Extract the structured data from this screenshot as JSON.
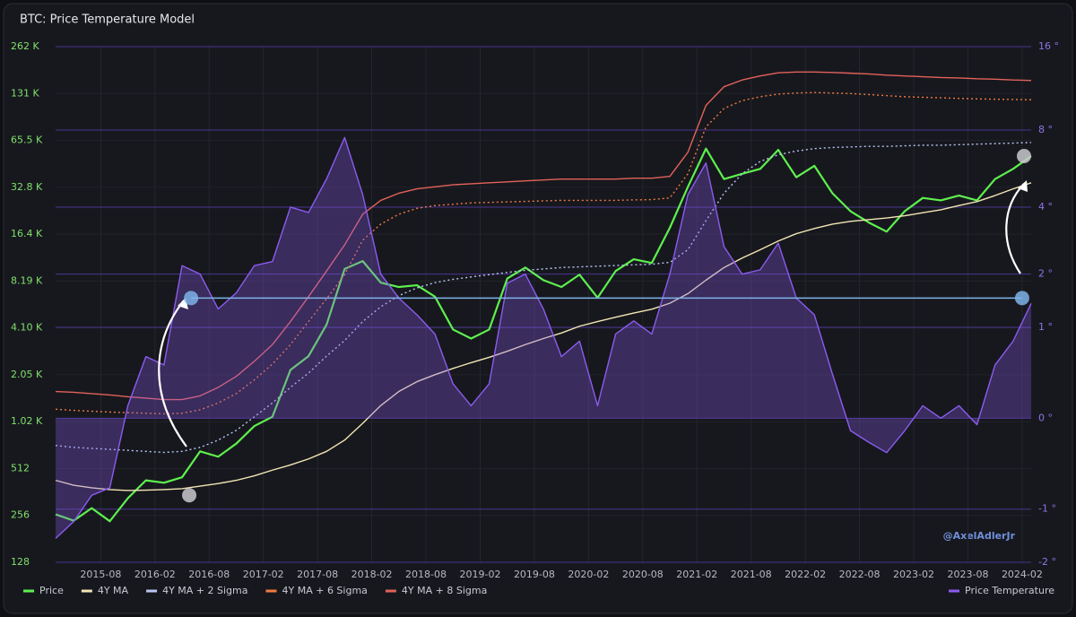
{
  "chart_data": {
    "type": "line",
    "title": "BTC: Price Temperature Model",
    "watermark": "@AxelAdlerJr",
    "x": [
      "2015-03",
      "2015-05",
      "2015-07",
      "2015-09",
      "2015-11",
      "2016-01",
      "2016-03",
      "2016-05",
      "2016-07",
      "2016-09",
      "2016-11",
      "2017-01",
      "2017-03",
      "2017-05",
      "2017-07",
      "2017-09",
      "2017-11",
      "2018-01",
      "2018-03",
      "2018-05",
      "2018-07",
      "2018-09",
      "2018-11",
      "2019-01",
      "2019-03",
      "2019-05",
      "2019-07",
      "2019-09",
      "2019-11",
      "2020-01",
      "2020-03",
      "2020-05",
      "2020-07",
      "2020-09",
      "2020-11",
      "2021-01",
      "2021-03",
      "2021-05",
      "2021-07",
      "2021-09",
      "2021-11",
      "2022-01",
      "2022-03",
      "2022-05",
      "2022-07",
      "2022-09",
      "2022-11",
      "2023-01",
      "2023-03",
      "2023-05",
      "2023-07",
      "2023-09",
      "2023-11",
      "2024-01",
      "2024-03"
    ],
    "series": [
      {
        "name": "Price",
        "color": "#5ef04e",
        "width": 2.2,
        "values": [
          260,
          237,
          285,
          235,
          330,
          430,
          415,
          450,
          660,
          610,
          740,
          960,
          1100,
          2200,
          2700,
          4300,
          9800,
          11000,
          8000,
          7500,
          7700,
          6500,
          4000,
          3500,
          4000,
          8500,
          10000,
          8300,
          7500,
          9000,
          6400,
          9500,
          11300,
          10700,
          18000,
          33000,
          58000,
          37000,
          40000,
          43000,
          57000,
          38000,
          45000,
          30000,
          23000,
          19500,
          17000,
          23000,
          28000,
          27000,
          29000,
          27000,
          37000,
          43000,
          52000
        ]
      },
      {
        "name": "4Y MA",
        "color": "#f3e6b4",
        "width": 1.4,
        "values": [
          430,
          400,
          385,
          375,
          370,
          372,
          375,
          380,
          395,
          410,
          430,
          460,
          500,
          540,
          590,
          660,
          780,
          1000,
          1300,
          1600,
          1850,
          2050,
          2250,
          2450,
          2650,
          2900,
          3200,
          3500,
          3800,
          4200,
          4500,
          4800,
          5100,
          5400,
          5900,
          6800,
          8300,
          10000,
          11500,
          13000,
          14800,
          16500,
          17800,
          19000,
          19800,
          20300,
          20800,
          21500,
          22500,
          23500,
          25000,
          26500,
          29000,
          32000,
          35000
        ]
      },
      {
        "name": "4Y MA + 2 Sigma",
        "color": "#b9c6f2",
        "width": 1.4,
        "dash": true,
        "values": [
          720,
          700,
          690,
          680,
          670,
          660,
          650,
          660,
          700,
          780,
          900,
          1100,
          1350,
          1700,
          2100,
          2700,
          3400,
          4500,
          5600,
          6600,
          7400,
          8000,
          8400,
          8700,
          9000,
          9300,
          9600,
          9800,
          10000,
          10100,
          10200,
          10300,
          10400,
          10500,
          10800,
          13000,
          20000,
          30000,
          40000,
          48000,
          53000,
          56000,
          58000,
          59000,
          59500,
          60000,
          60000,
          60500,
          61000,
          61000,
          61500,
          62000,
          62500,
          63000,
          63500
        ]
      },
      {
        "name": "4Y MA + 6 Sigma",
        "color": "#f07a3e",
        "width": 1.4,
        "dash": true,
        "values": [
          1230,
          1210,
          1195,
          1180,
          1170,
          1160,
          1150,
          1160,
          1220,
          1350,
          1550,
          1900,
          2400,
          3200,
          4500,
          6300,
          9000,
          15000,
          19000,
          22000,
          24000,
          25000,
          25500,
          26000,
          26200,
          26400,
          26600,
          26800,
          27000,
          27000,
          27000,
          27000,
          27200,
          27300,
          28000,
          40000,
          80000,
          105000,
          118000,
          125000,
          130000,
          132000,
          133000,
          132000,
          131000,
          129000,
          127000,
          125000,
          124000,
          123000,
          122000,
          121000,
          120500,
          120000,
          119500
        ]
      },
      {
        "name": "4Y MA + 8 Sigma",
        "color": "#e2625a",
        "width": 1.4,
        "values": [
          1600,
          1580,
          1550,
          1520,
          1480,
          1450,
          1420,
          1420,
          1500,
          1700,
          2000,
          2500,
          3200,
          4500,
          6500,
          9500,
          14000,
          22000,
          27000,
          30000,
          32000,
          33000,
          34000,
          34500,
          35000,
          35500,
          36000,
          36500,
          37000,
          37000,
          37000,
          37000,
          37500,
          37500,
          38500,
          55000,
          110000,
          145000,
          160000,
          170000,
          178000,
          180000,
          180000,
          179000,
          177000,
          175000,
          172000,
          170000,
          168000,
          166000,
          165000,
          163000,
          162000,
          160000,
          159000
        ]
      },
      {
        "name": "Price Temperature",
        "color": "#8b5cf0",
        "axis": "y2",
        "fill": true,
        "width": 1.4,
        "values": [
          -1.5,
          -1.2,
          -0.8,
          -0.7,
          0.1,
          0.6,
          0.5,
          2.2,
          2.0,
          1.3,
          1.6,
          2.2,
          2.3,
          4.0,
          3.8,
          5.2,
          7.5,
          4.5,
          2.0,
          1.5,
          1.2,
          0.9,
          0.3,
          0.1,
          0.3,
          1.8,
          2.0,
          1.3,
          0.6,
          0.8,
          0.1,
          0.9,
          1.1,
          0.9,
          2.0,
          4.5,
          6.0,
          2.7,
          2.0,
          2.1,
          2.8,
          1.5,
          1.2,
          0.4,
          -0.1,
          -0.2,
          -0.3,
          -0.1,
          0.1,
          0.0,
          0.1,
          -0.05,
          0.5,
          0.8,
          1.4
        ]
      }
    ],
    "hline": {
      "value": 1.5,
      "axis": "y2",
      "color": "#7fb3e8",
      "x": [
        "2016-06",
        "2024-02"
      ]
    },
    "xlim": [
      "2015-03",
      "2024-03"
    ],
    "xticks": [
      "2015-08",
      "2016-02",
      "2016-08",
      "2017-02",
      "2017-08",
      "2018-02",
      "2018-08",
      "2019-02",
      "2019-08",
      "2020-02",
      "2020-08",
      "2021-02",
      "2021-08",
      "2022-02",
      "2022-08",
      "2023-02",
      "2023-08",
      "2024-02"
    ],
    "yscale": "log",
    "ylim": [
      128,
      262144
    ],
    "yticks": [
      128,
      {
        "value": 256,
        "label": "256"
      },
      {
        "value": 512,
        "label": "512"
      },
      {
        "value": 1024,
        "label": "1.02 K"
      },
      {
        "value": 2048,
        "label": "2.05 K"
      },
      {
        "value": 4096,
        "label": "4.10 K"
      },
      {
        "value": 8192,
        "label": "8.19 K"
      },
      {
        "value": 16384,
        "label": "16.4 K"
      },
      {
        "value": 32768,
        "label": "32.8 K"
      },
      {
        "value": 65536,
        "label": "65.5 K"
      },
      {
        "value": 131072,
        "label": "131 K"
      },
      {
        "value": 262144,
        "label": "262 K"
      }
    ],
    "y2scale": "log1p",
    "y2lim": [
      -2,
      16
    ],
    "y2ticks": [
      {
        "value": -2,
        "label": "-2 °"
      },
      {
        "value": -1,
        "label": "-1 °"
      },
      {
        "value": 0,
        "label": "0 °"
      },
      {
        "value": 1,
        "label": "1 °"
      },
      {
        "value": 2,
        "label": "2 °"
      },
      {
        "value": 4,
        "label": "4 °"
      },
      {
        "value": 8,
        "label": "8 °"
      },
      {
        "value": 16,
        "label": "16 °"
      }
    ],
    "grid": true
  }
}
